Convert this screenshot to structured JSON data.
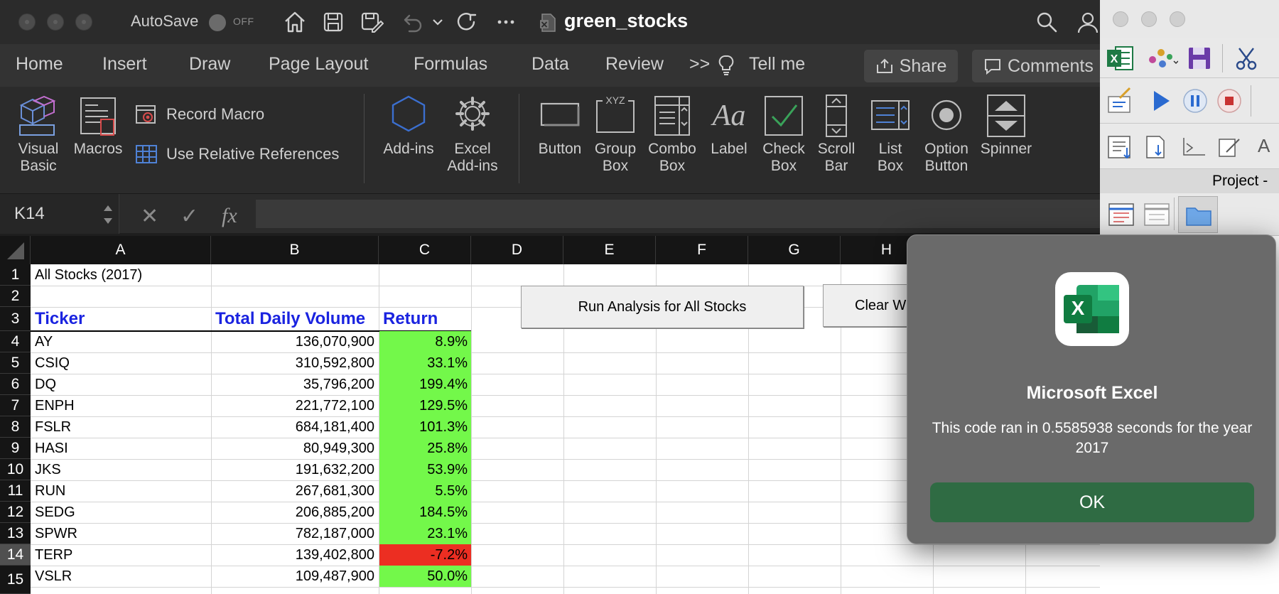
{
  "titlebar": {
    "autosave_label": "AutoSave",
    "autosave_state": "OFF",
    "doc_title": "green_stocks"
  },
  "tabs": [
    "Home",
    "Insert",
    "Draw",
    "Page Layout",
    "Formulas",
    "Data",
    "Review",
    ">>",
    "Tell me"
  ],
  "share_label": "Share",
  "comments_label": "Comments",
  "ribbon": {
    "visual_basic": [
      "Visual",
      "Basic"
    ],
    "macros": "Macros",
    "record_macro": "Record Macro",
    "use_relative": "Use Relative References",
    "addins": "Add-ins",
    "excel_addins": [
      "Excel",
      "Add-ins"
    ],
    "button": "Button",
    "group_box": [
      "Group",
      "Box"
    ],
    "combo_box": [
      "Combo",
      "Box"
    ],
    "label": "Label",
    "check_box": [
      "Check",
      "Box"
    ],
    "scroll_bar": [
      "Scroll",
      "Bar"
    ],
    "list_box": [
      "List",
      "Box"
    ],
    "option_button": [
      "Option",
      "Button"
    ],
    "spinner": "Spinner"
  },
  "formula_bar": {
    "name_box": "K14",
    "fx": "fx",
    "cancel": "✕",
    "enter": "✓",
    "content": ""
  },
  "columns": [
    "A",
    "B",
    "C",
    "D",
    "E",
    "F",
    "G",
    "H"
  ],
  "rows": [
    "1",
    "2",
    "3",
    "4",
    "5",
    "6",
    "7",
    "8",
    "9",
    "10",
    "11",
    "12",
    "13",
    "14",
    "15"
  ],
  "sheet": {
    "a1": "All Stocks (2017)",
    "headers": {
      "ticker": "Ticker",
      "volume": "Total Daily Volume",
      "return": "Return"
    },
    "data": [
      {
        "ticker": "AY",
        "volume": "136,070,900",
        "return": "8.9%",
        "positive": true
      },
      {
        "ticker": "CSIQ",
        "volume": "310,592,800",
        "return": "33.1%",
        "positive": true
      },
      {
        "ticker": "DQ",
        "volume": "35,796,200",
        "return": "199.4%",
        "positive": true
      },
      {
        "ticker": "ENPH",
        "volume": "221,772,100",
        "return": "129.5%",
        "positive": true
      },
      {
        "ticker": "FSLR",
        "volume": "684,181,400",
        "return": "101.3%",
        "positive": true
      },
      {
        "ticker": "HASI",
        "volume": "80,949,300",
        "return": "25.8%",
        "positive": true
      },
      {
        "ticker": "JKS",
        "volume": "191,632,200",
        "return": "53.9%",
        "positive": true
      },
      {
        "ticker": "RUN",
        "volume": "267,681,300",
        "return": "5.5%",
        "positive": true
      },
      {
        "ticker": "SEDG",
        "volume": "206,885,200",
        "return": "184.5%",
        "positive": true
      },
      {
        "ticker": "SPWR",
        "volume": "782,187,000",
        "return": "23.1%",
        "positive": true
      },
      {
        "ticker": "TERP",
        "volume": "139,402,800",
        "return": "-7.2%",
        "positive": false
      },
      {
        "ticker": "VSLR",
        "volume": "109,487,900",
        "return": "50.0%",
        "positive": true
      }
    ],
    "selected_row": "14",
    "run_button": "Run Analysis for All Stocks",
    "clear_button": "Clear W"
  },
  "vba": {
    "project_label": "Project -"
  },
  "dialog": {
    "title": "Microsoft Excel",
    "message": "This code ran in 0.5585938 seconds for the year 2017",
    "ok_label": "OK"
  },
  "colors": {
    "positive": "#73f84a",
    "negative": "#ec2e22",
    "header_text": "#1a23e0",
    "ok_button": "#2f6b43"
  }
}
